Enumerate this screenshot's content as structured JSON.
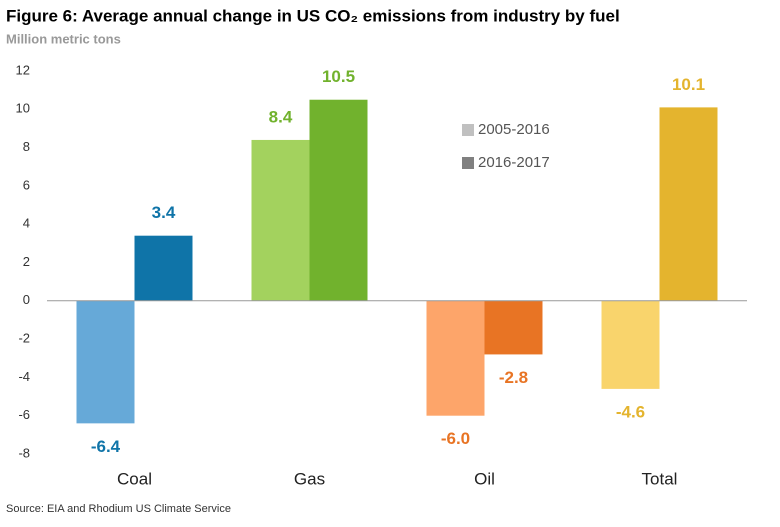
{
  "chart_data": {
    "type": "bar",
    "title": "Figure 6: Average annual change in US CO₂ emissions from industry by fuel",
    "subtitle": "Million metric tons",
    "source": "Source: EIA and Rhodium US Climate Service",
    "categories": [
      "Coal",
      "Gas",
      "Oil",
      "Total"
    ],
    "series": [
      {
        "name": "2005-2016",
        "color": "#c0c0c0",
        "colors": [
          "#66a9d8",
          "#a3d25e",
          "#fda56a",
          "#f9d46c"
        ],
        "values": [
          -6.4,
          8.4,
          -6.0,
          -4.6
        ],
        "value_labels": [
          "-6.4",
          "8.4",
          "-6.0",
          "-4.6"
        ]
      },
      {
        "name": "2016-2017",
        "color": "#808080",
        "colors": [
          "#0f74a8",
          "#71b22d",
          "#e87424",
          "#e4b42e"
        ],
        "values": [
          3.4,
          10.5,
          -2.8,
          10.1
        ]
      }
    ],
    "ylim": [
      -8,
      12
    ],
    "yticks": [
      -8,
      -6,
      -4,
      -2,
      0,
      2,
      4,
      6,
      8,
      10,
      12
    ],
    "grid": false
  }
}
